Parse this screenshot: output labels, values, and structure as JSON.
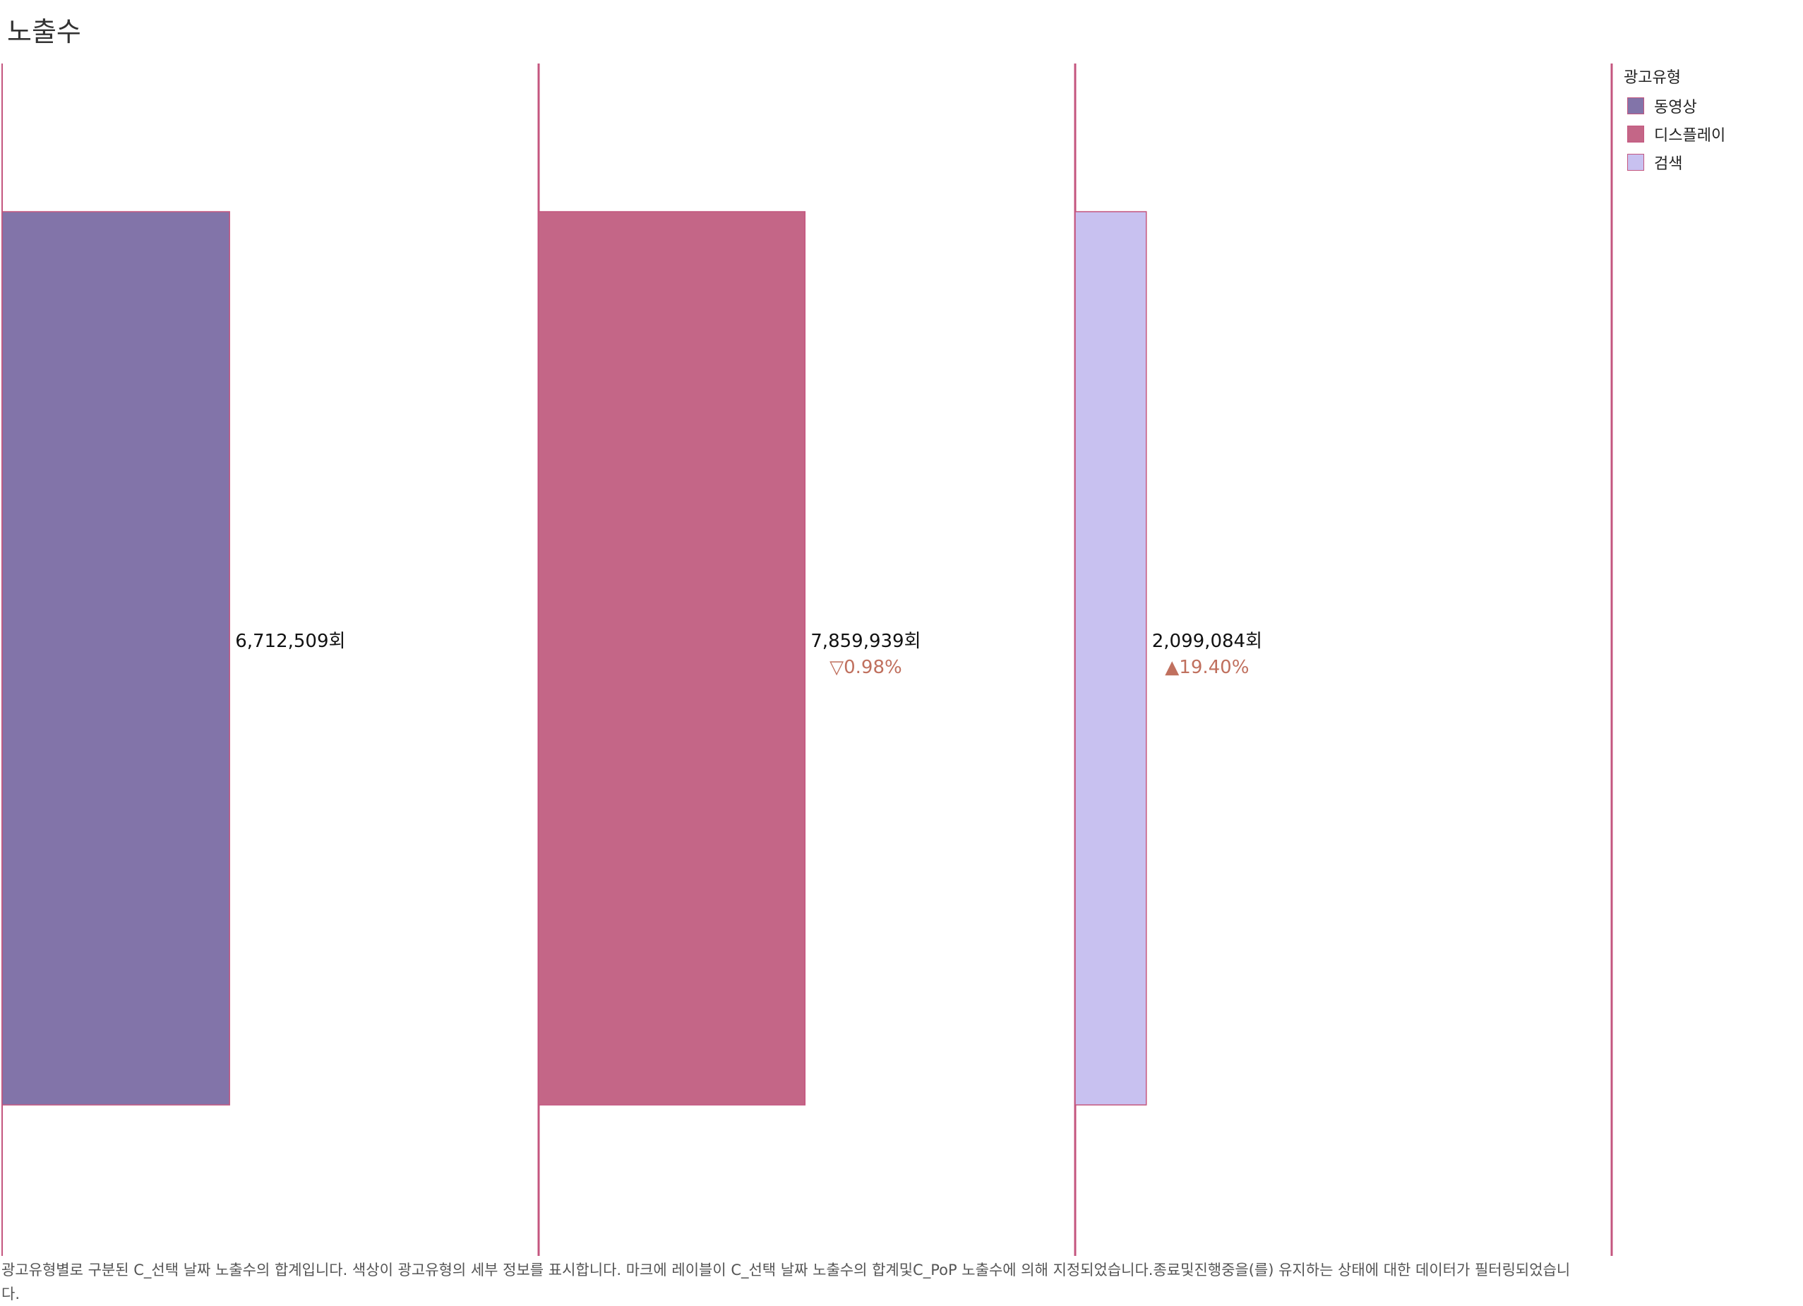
{
  "title": "노출수",
  "legend": {
    "title": "광고유형",
    "items": [
      {
        "label": "동영상",
        "color": "#8274a9"
      },
      {
        "label": "디스플레이",
        "color": "#c46687"
      },
      {
        "label": "검색",
        "color": "#c8c1f0"
      }
    ]
  },
  "chart_data": {
    "type": "bar",
    "categories": [
      "동영상",
      "디스플레이",
      "검색"
    ],
    "values": [
      6712509,
      7859939,
      2099084
    ],
    "value_labels": [
      "6,712,509회",
      "7,859,939회",
      "2,099,084회"
    ],
    "pop_labels": [
      "",
      "▽0.98%",
      "▲19.40%"
    ],
    "colors": [
      "#8274a9",
      "#c46687",
      "#c8c1f0"
    ],
    "pop_color": "#c0705e",
    "divider_color": "#c4567f",
    "xlim": [
      0,
      10000000
    ],
    "grid": false,
    "legend_position": "top-right"
  },
  "caption": "광고유형별로 구분된 C_선택 날짜 노출수의 합계입니다. 색상이 광고유형의 세부 정보를 표시합니다. 마크에 레이블이 C_선택 날짜 노출수의 합계및C_PoP 노출수에 의해 지정되었습니다.종료및진행중을(를) 유지하는 상태에 대한 데이터가 필터링되었습니다."
}
